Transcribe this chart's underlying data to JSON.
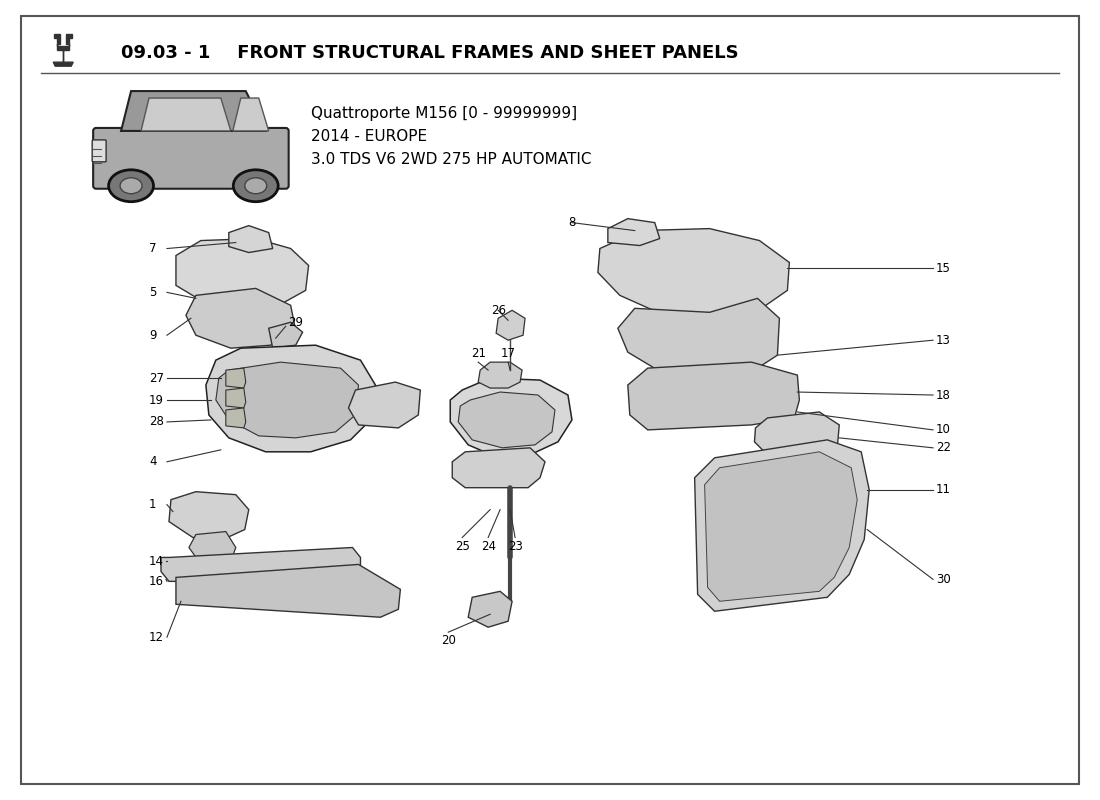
{
  "title_bold": "09.03 - 1",
  "title_rest": " FRONT STRUCTURAL FRAMES AND SHEET PANELS",
  "car_model_line1": "Quattroporte M156 [0 - 99999999]",
  "car_model_line2": "2014 - EUROPE",
  "car_model_line3": "3.0 TDS V6 2WD 275 HP AUTOMATIC",
  "bg_color": "#ffffff",
  "text_color": "#000000"
}
